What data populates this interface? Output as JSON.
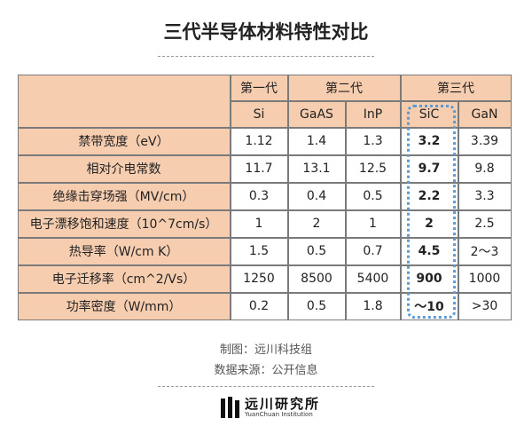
{
  "header": {
    "title": "三代半导体材料特性对比"
  },
  "table": {
    "groups": [
      "第一代",
      "第二代",
      "第三代"
    ],
    "columns": [
      "Si",
      "GaAS",
      "InP",
      "SiC",
      "GaN"
    ],
    "rows": [
      [
        "禁带宽度（eV）",
        "1.12",
        "1.4",
        "1.3",
        "3.2",
        "3.39"
      ],
      [
        "相对介电常数",
        "11.7",
        "13.1",
        "12.5",
        "9.7",
        "9.8"
      ],
      [
        "绝缘击穿场强（MV/cm）",
        "0.3",
        "0.4",
        "0.5",
        "2.2",
        "3.3"
      ],
      [
        "电子漂移饱和速度（10^7cm/s）",
        "1",
        "2",
        "1",
        "2",
        "2.5"
      ],
      [
        "热导率（W/cm K）",
        "1.5",
        "0.5",
        "0.7",
        "4.5",
        "2～3"
      ],
      [
        "电子迁移率（cm^2/Vs）",
        "1250",
        "8500",
        "5400",
        "900",
        "1000"
      ],
      [
        "功率密度（W/mm）",
        "0.2",
        "0.5",
        "1.8",
        "～10",
        ">30"
      ]
    ]
  },
  "footer": {
    "credit": "制图：远川科技组",
    "source": "数据来源：公开信息"
  },
  "logo": {
    "name": "远川研究所",
    "subtitle": "YuanChuan Institution"
  }
}
